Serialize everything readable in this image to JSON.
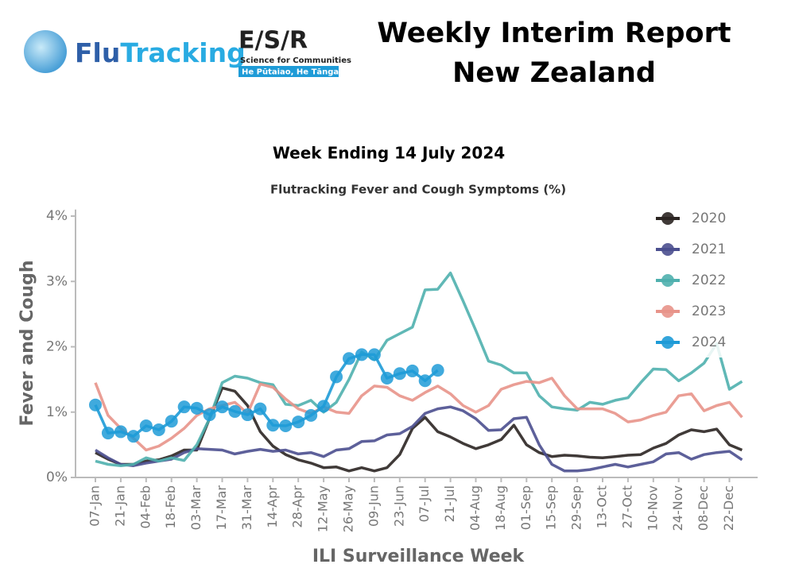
{
  "header": {
    "logo_flu": "Flu",
    "logo_tracking": "Tracking",
    "esr": "E/S/R",
    "esr_tagline": "Science for Communities",
    "esr_maori": "He Pūtaiao, He Tāngata",
    "title_line1": "Weekly Interim Report",
    "title_line2": "New Zealand",
    "subtitle": "Week Ending 14 July 2024"
  },
  "chart_data": {
    "type": "line",
    "title": "Flutracking Fever and Cough Symptoms (%)",
    "x_label": "ILI Surveillance Week",
    "y_label": "Fever and Cough",
    "categories": [
      "07-Jan",
      null,
      "21-Jan",
      null,
      "04-Feb",
      null,
      "18-Feb",
      null,
      "03-Mar",
      null,
      "17-Mar",
      null,
      "31-Mar",
      null,
      "14-Apr",
      null,
      "28-Apr",
      null,
      "12-May",
      null,
      "26-May",
      null,
      "09-Jun",
      null,
      "23-Jun",
      null,
      "07-Jul",
      null,
      "21-Jul",
      null,
      "04-Aug",
      null,
      "18-Aug",
      null,
      "01-Sep",
      null,
      "15-Sep",
      null,
      "29-Sep",
      null,
      "13-Oct",
      null,
      "27-Oct",
      null,
      "10-Nov",
      null,
      "24-Nov",
      null,
      "08-Dec",
      null,
      "22-Dec",
      null
    ],
    "ylim": [
      0,
      4.1
    ],
    "yticks": [
      {
        "value": 0,
        "label": "0%"
      },
      {
        "value": 1,
        "label": "1%"
      },
      {
        "value": 2,
        "label": "2%"
      },
      {
        "value": 3,
        "label": "3%"
      },
      {
        "value": 4,
        "label": "4%"
      }
    ],
    "legend": "upper-right",
    "series": [
      {
        "name": "2020",
        "color": "#2b2522",
        "markers": false,
        "values": [
          0.38,
          0.28,
          0.2,
          0.2,
          0.25,
          0.27,
          0.33,
          0.42,
          0.42,
          0.9,
          1.37,
          1.32,
          1.1,
          0.7,
          0.48,
          0.35,
          0.27,
          0.22,
          0.15,
          0.16,
          0.1,
          0.15,
          0.1,
          0.15,
          0.35,
          0.75,
          0.92,
          0.7,
          0.62,
          0.52,
          0.44,
          0.5,
          0.58,
          0.8,
          0.5,
          0.38,
          0.32,
          0.34,
          0.33,
          0.31,
          0.3,
          0.32,
          0.34,
          0.35,
          0.45,
          0.52,
          0.65,
          0.73,
          0.7,
          0.74,
          0.5,
          0.42
        ]
      },
      {
        "name": "2021",
        "color": "#4b4f8f",
        "markers": false,
        "values": [
          0.42,
          0.3,
          0.2,
          0.18,
          0.22,
          0.25,
          0.28,
          0.38,
          0.44,
          0.43,
          0.42,
          0.36,
          0.4,
          0.43,
          0.4,
          0.42,
          0.36,
          0.38,
          0.32,
          0.42,
          0.44,
          0.55,
          0.56,
          0.65,
          0.67,
          0.78,
          0.98,
          1.05,
          1.08,
          1.02,
          0.9,
          0.72,
          0.73,
          0.9,
          0.92,
          0.5,
          0.2,
          0.1,
          0.1,
          0.12,
          0.16,
          0.2,
          0.16,
          0.2,
          0.24,
          0.36,
          0.38,
          0.28,
          0.35,
          0.38,
          0.4,
          0.27
        ]
      },
      {
        "name": "2022",
        "color": "#4fb0ae",
        "markers": false,
        "values": [
          0.25,
          0.2,
          0.18,
          0.2,
          0.3,
          0.25,
          0.3,
          0.26,
          0.5,
          0.9,
          1.45,
          1.55,
          1.52,
          1.45,
          1.42,
          1.12,
          1.1,
          1.18,
          1.0,
          1.15,
          1.5,
          1.92,
          1.8,
          2.1,
          2.2,
          2.3,
          2.87,
          2.88,
          3.13,
          2.7,
          2.25,
          1.78,
          1.72,
          1.6,
          1.6,
          1.25,
          1.08,
          1.05,
          1.03,
          1.15,
          1.12,
          1.18,
          1.22,
          1.45,
          1.66,
          1.65,
          1.48,
          1.6,
          1.75,
          2.05,
          1.35,
          1.47
        ]
      },
      {
        "name": "2023",
        "color": "#e8948a",
        "markers": false,
        "values": [
          1.45,
          0.95,
          0.75,
          0.6,
          0.42,
          0.48,
          0.6,
          0.75,
          0.95,
          1.05,
          1.1,
          1.15,
          0.98,
          1.43,
          1.38,
          1.2,
          1.05,
          0.98,
          1.08,
          1.0,
          0.98,
          1.25,
          1.4,
          1.38,
          1.25,
          1.18,
          1.3,
          1.4,
          1.28,
          1.1,
          1.0,
          1.1,
          1.35,
          1.42,
          1.47,
          1.45,
          1.52,
          1.25,
          1.05,
          1.05,
          1.05,
          0.98,
          0.85,
          0.88,
          0.95,
          1.0,
          1.25,
          1.28,
          1.02,
          1.1,
          1.15,
          0.92
        ]
      },
      {
        "name": "2024",
        "color": "#1e9bd7",
        "markers": true,
        "values": [
          1.11,
          0.68,
          0.7,
          0.63,
          0.79,
          0.73,
          0.86,
          1.08,
          1.06,
          0.96,
          1.08,
          1.01,
          0.96,
          1.05,
          0.8,
          0.79,
          0.85,
          0.95,
          1.09,
          1.54,
          1.82,
          1.88,
          1.88,
          1.52,
          1.59,
          1.63,
          1.48,
          1.64,
          null,
          null,
          null,
          null,
          null,
          null,
          null,
          null,
          null,
          null,
          null,
          null,
          null,
          null,
          null,
          null,
          null,
          null,
          null,
          null,
          null,
          null,
          null,
          null
        ]
      }
    ]
  }
}
